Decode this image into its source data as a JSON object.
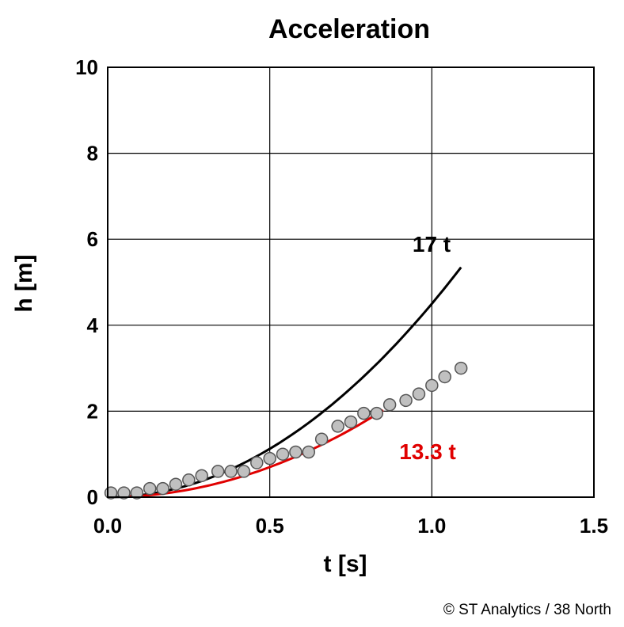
{
  "chart_data": {
    "type": "scatter",
    "title": "Acceleration",
    "xlabel": "t [s]",
    "ylabel": "h [m]",
    "xlim": [
      0,
      1.5
    ],
    "ylim": [
      0,
      10
    ],
    "xticks": [
      "0.0",
      "0.5",
      "1.0",
      "1.5"
    ],
    "yticks": [
      "0",
      "2",
      "4",
      "6",
      "8",
      "10"
    ],
    "grid": true,
    "curves": [
      {
        "label": "17 t",
        "color": "#000000",
        "coefficient": 4.5,
        "t_range": [
          0,
          1.09
        ]
      },
      {
        "label": "13.3 t",
        "color": "#e00000",
        "coefficient": 2.8,
        "t_range": [
          0.05,
          0.85
        ]
      }
    ],
    "points": {
      "color": "#c0c0c0",
      "x": [
        0.01,
        0.05,
        0.09,
        0.13,
        0.17,
        0.21,
        0.25,
        0.29,
        0.34,
        0.38,
        0.42,
        0.46,
        0.5,
        0.54,
        0.58,
        0.62,
        0.66,
        0.71,
        0.75,
        0.79,
        0.83,
        0.87,
        0.92,
        0.96,
        1.0,
        1.04,
        1.09
      ],
      "y": [
        0.1,
        0.1,
        0.1,
        0.2,
        0.2,
        0.3,
        0.4,
        0.5,
        0.6,
        0.6,
        0.6,
        0.8,
        0.9,
        1.0,
        1.05,
        1.05,
        1.35,
        1.65,
        1.75,
        1.95,
        1.95,
        2.15,
        2.25,
        2.4,
        2.6,
        2.8,
        3.0
      ]
    }
  },
  "credit": "© ST Analytics / 38 North"
}
